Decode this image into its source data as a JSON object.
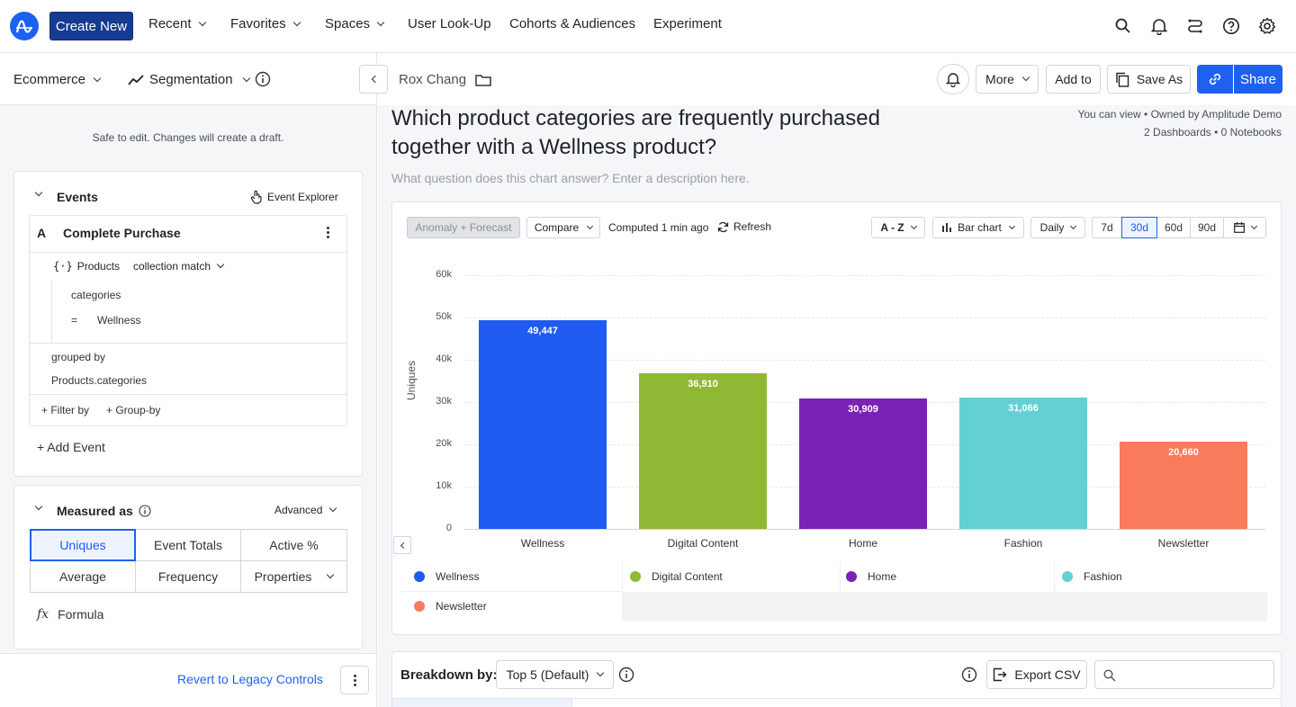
{
  "nav": {
    "create_new": "Create New",
    "recent": "Recent",
    "favorites": "Favorites",
    "spaces": "Spaces",
    "user_lookup": "User Look-Up",
    "cohorts": "Cohorts & Audiences",
    "experiment": "Experiment"
  },
  "left": {
    "project": "Ecommerce",
    "chart_type": "Segmentation",
    "safe_note": "Safe to edit. Changes will create a draft.",
    "events_title": "Events",
    "event_explorer": "Event Explorer",
    "event_letter": "A",
    "event_name": "Complete Purchase",
    "prop_name": "Products",
    "prop_op": "collection match",
    "prop_key": "categories",
    "prop_eq": "=",
    "prop_value": "Wellness",
    "grouped_by": "grouped by",
    "group_value": "Products.categories",
    "filter_by": "+ Filter by",
    "group_by": "+ Group-by",
    "add_event": "+ Add Event",
    "measured_as": "Measured as",
    "advanced": "Advanced",
    "metrics": [
      "Uniques",
      "Event Totals",
      "Active %",
      "Average",
      "Frequency",
      "Properties"
    ],
    "formula_fx": "fx",
    "formula": "Formula",
    "revert": "Revert to Legacy Controls"
  },
  "header": {
    "owner": "Rox Chang",
    "more": "More",
    "add_to": "Add to",
    "save_as": "Save As",
    "share": "Share",
    "title": "Which product categories are frequently purchased together with a Wellness product?",
    "description_placeholder": "What question does this chart answer? Enter a description here.",
    "permissions": "You can view • Owned by Amplitude Demo",
    "counts": "2 Dashboards • 0 Notebooks"
  },
  "toolbar": {
    "anomaly": "Anomaly + Forecast",
    "compare": "Compare",
    "computed": "Computed 1 min ago",
    "refresh": "Refresh",
    "sort": "A - Z",
    "chart": "Bar chart",
    "interval": "Daily",
    "ranges": [
      "7d",
      "30d",
      "60d",
      "90d"
    ],
    "selected_range": "30d"
  },
  "chart_data": {
    "type": "bar",
    "ylabel": "Uniques",
    "ylim": [
      0,
      60000
    ],
    "yticks": [
      "0",
      "10k",
      "20k",
      "30k",
      "40k",
      "50k",
      "60k"
    ],
    "categories": [
      "Wellness",
      "Digital Content",
      "Home",
      "Fashion",
      "Newsletter"
    ],
    "values": [
      49447,
      36910,
      30909,
      31066,
      20660
    ],
    "labels": [
      "49,447",
      "36,910",
      "30,909",
      "31,066",
      "20,660"
    ],
    "colors": [
      "#1f5bf0",
      "#91b834",
      "#7a22b5",
      "#62d0d4",
      "#fa7a5c"
    ]
  },
  "breakdown": {
    "label": "Breakdown by:",
    "value": "Top 5 (Default)",
    "export": "Export CSV"
  }
}
